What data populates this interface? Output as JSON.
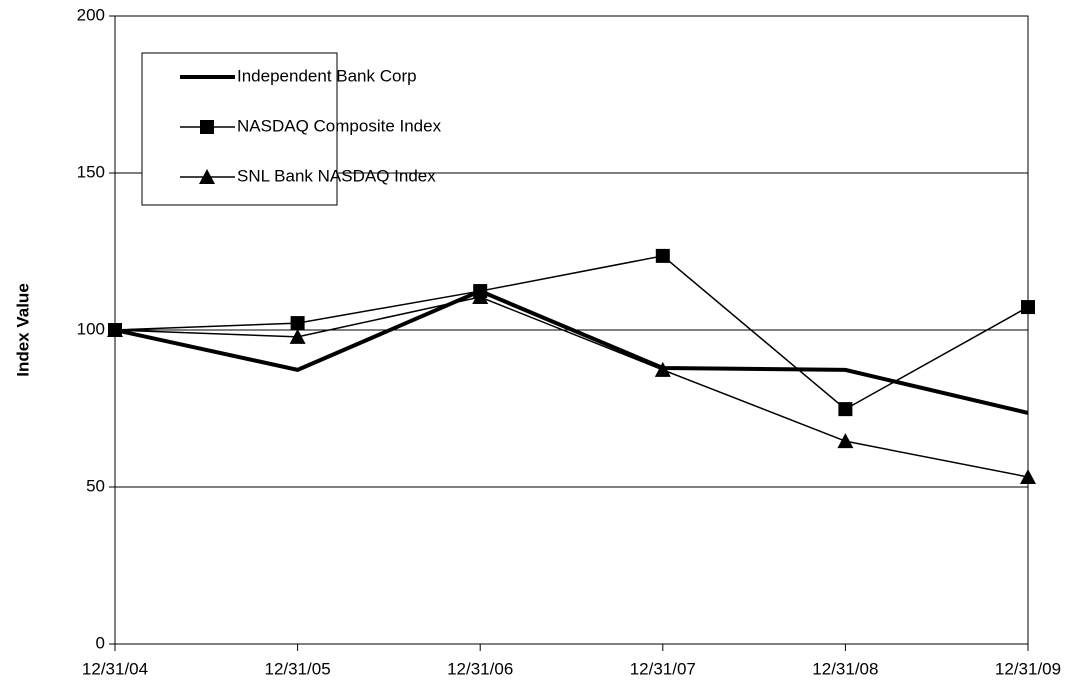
{
  "chart_data": {
    "type": "line",
    "y_label": "Index Value",
    "categories": [
      "12/31/04",
      "12/31/05",
      "12/31/06",
      "12/31/07",
      "12/31/08",
      "12/31/09"
    ],
    "series": [
      {
        "name": "Independent Bank Corp",
        "color": "#000000",
        "marker": "none",
        "line_width": 4,
        "values": [
          100,
          87.3,
          112.4,
          87.9,
          87.3,
          73.6
        ]
      },
      {
        "name": "NASDAQ Composite Index",
        "color": "#000000",
        "marker": "square",
        "line_width": 1.5,
        "values": [
          100,
          102.2,
          112.4,
          123.6,
          74.8,
          107.3
        ]
      },
      {
        "name": "SNL Bank NASDAQ Index",
        "color": "#000000",
        "marker": "triangle",
        "line_width": 1.5,
        "values": [
          100,
          97.8,
          110.5,
          87.3,
          64.6,
          53.2
        ]
      }
    ],
    "ylim": [
      0,
      200
    ],
    "yticks": [
      0,
      50,
      100,
      150,
      200
    ],
    "grid": true,
    "legend": "upper left"
  }
}
